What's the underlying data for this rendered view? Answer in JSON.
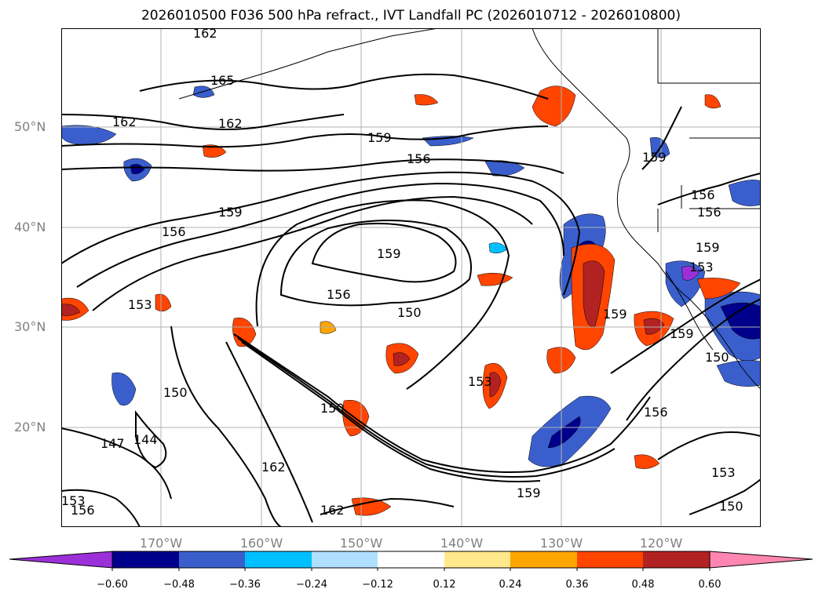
{
  "title": "2026010500 F036 500 hPa refract., IVT Landfall PC (2026010712 - 2026010800)",
  "lat_labels": [
    "50°N",
    "40°N",
    "30°N",
    "20°N"
  ],
  "lon_labels": [
    "170°W",
    "160°W",
    "150°W",
    "140°W",
    "130°W",
    "120°W"
  ],
  "contour_labels": [
    "162",
    "165",
    "162",
    "162",
    "159",
    "156",
    "159",
    "156",
    "153",
    "159",
    "156",
    "150",
    "150",
    "153",
    "144",
    "147",
    "150",
    "162",
    "162",
    "159",
    "159",
    "156",
    "159",
    "153",
    "156",
    "150",
    "156",
    "153",
    "150",
    "159",
    "159",
    "153",
    "156"
  ],
  "colorbar": {
    "ticks": [
      "−0.60",
      "−0.48",
      "−0.36",
      "−0.24",
      "−0.12",
      "0.12",
      "0.24",
      "0.36",
      "0.48",
      "0.60"
    ],
    "colors": [
      "#9b30d9",
      "#00008b",
      "#3a5fcd",
      "#00bfff",
      "#b0e0ff",
      "#ffffff",
      "#ffe98a",
      "#ffa500",
      "#ff4500",
      "#b22222",
      "#ff86b0"
    ]
  },
  "colors": {
    "neg_strong": "#00008b",
    "neg_mid": "#3a5fcd",
    "neg_light": "#00bfff",
    "pos_light": "#ffe98a",
    "pos_mid": "#ffa500",
    "pos_strong": "#ff4500",
    "pos_dark": "#b22222",
    "grid": "#b0b0b0"
  }
}
